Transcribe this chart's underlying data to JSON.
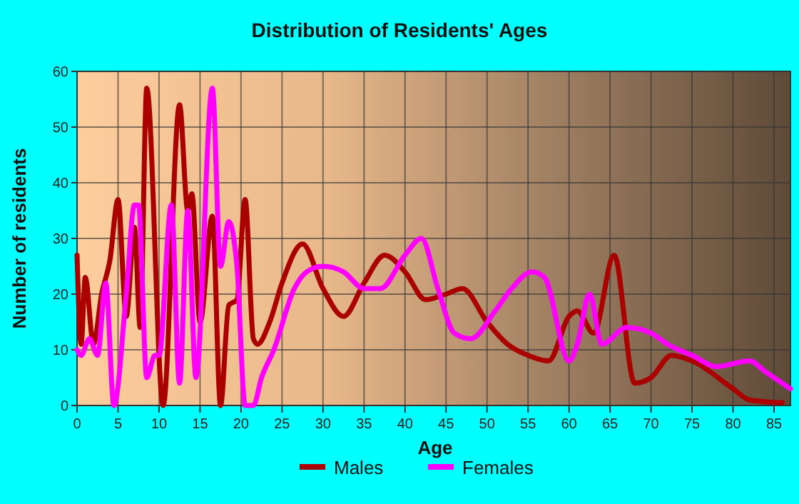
{
  "chart_data": {
    "type": "line",
    "title": "Distribution of Residents' Ages",
    "xlabel": "Age",
    "ylabel": "Number of residents",
    "xlim": [
      0,
      87
    ],
    "xticks": [
      0,
      5,
      10,
      15,
      20,
      25,
      30,
      35,
      40,
      45,
      50,
      55,
      60,
      65,
      70,
      75,
      80,
      85
    ],
    "ylim": [
      0,
      60
    ],
    "yticks": [
      0,
      10,
      20,
      30,
      40,
      50,
      60
    ],
    "grid": true,
    "legend": "bottom",
    "marker": "none",
    "line_style": "solid",
    "series": [
      {
        "name": "Males",
        "color": "#aa0000",
        "x": [
          0,
          0.5,
          1,
          2,
          3,
          4,
          5,
          6,
          7,
          7.7,
          8.5,
          10.5,
          12.5,
          13.5,
          14,
          15,
          16.5,
          17.5,
          18.5,
          19.5,
          20.5,
          21.5,
          22,
          23.5,
          25,
          27.5,
          30,
          32.5,
          35,
          37.5,
          40,
          42.5,
          45,
          47,
          50,
          52.5,
          55,
          57.5,
          60,
          61,
          63,
          65.5,
          68,
          70,
          72.5,
          75,
          80,
          82,
          86
        ],
        "values": [
          27,
          11,
          23,
          11,
          20,
          26,
          37,
          16,
          32,
          14,
          57,
          0,
          54,
          35,
          38,
          15,
          34,
          0,
          18,
          19,
          37,
          12,
          11,
          15,
          22,
          29,
          21,
          16,
          22,
          27,
          24,
          19,
          20,
          21,
          15,
          11,
          9,
          8,
          16,
          17,
          13,
          27,
          4,
          5,
          9,
          8,
          3,
          1,
          0.5
        ]
      },
      {
        "name": "Females",
        "color": "#ff00ff",
        "x": [
          0,
          0.5,
          1.5,
          2.5,
          3.5,
          4.5,
          6,
          7,
          7.5,
          8.5,
          9.5,
          10,
          11.5,
          12.5,
          13.5,
          14.5,
          16.5,
          17.5,
          18.5,
          19.5,
          20.5,
          21.5,
          22.5,
          24,
          26.5,
          28,
          30,
          32.5,
          35,
          37,
          40,
          42,
          44,
          46,
          48,
          51,
          53,
          55.5,
          57,
          60,
          61,
          62.5,
          64,
          67,
          70,
          72,
          75,
          78,
          82,
          84,
          87
        ],
        "values": [
          10,
          9,
          12,
          9,
          22,
          0,
          20,
          36,
          36,
          5,
          9,
          9,
          36,
          4,
          35,
          5,
          57,
          25,
          33,
          25,
          0,
          0,
          5,
          10,
          21,
          24,
          25,
          24,
          21,
          21,
          27,
          30,
          21,
          13,
          12,
          17,
          21,
          24,
          23,
          8,
          11,
          20,
          11,
          14,
          13,
          11,
          9,
          7,
          8,
          6,
          3
        ]
      }
    ]
  }
}
